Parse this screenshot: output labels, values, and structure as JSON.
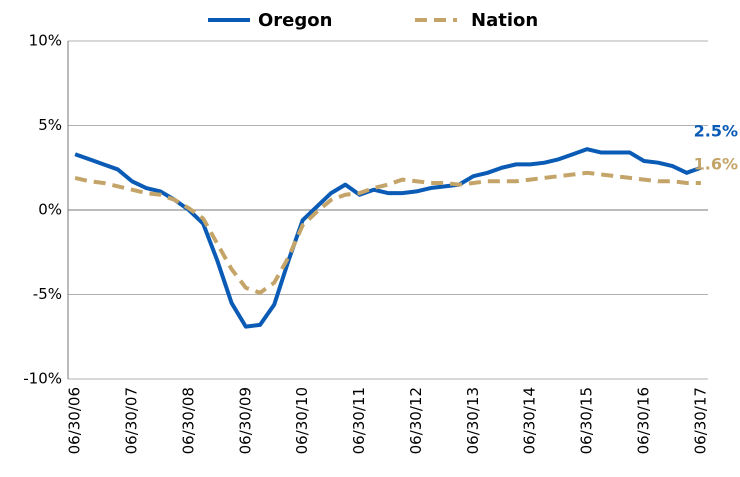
{
  "chart_data": {
    "type": "line",
    "categories": [
      "06/30/06",
      null,
      null,
      null,
      "06/30/07",
      null,
      null,
      null,
      "06/30/08",
      null,
      null,
      null,
      "06/30/09",
      null,
      null,
      null,
      "06/30/10",
      null,
      null,
      null,
      "06/30/11",
      null,
      null,
      null,
      "06/30/12",
      null,
      null,
      null,
      "06/30/13",
      null,
      null,
      null,
      "06/30/14",
      null,
      null,
      null,
      "06/30/15",
      null,
      null,
      null,
      "06/30/16",
      null,
      null,
      null,
      "06/30/17"
    ],
    "series": [
      {
        "name": "Oregon",
        "color": "#0a5bb5",
        "dashed": false,
        "values": [
          3.3,
          3.0,
          2.7,
          2.4,
          1.7,
          1.3,
          1.1,
          0.6,
          0.0,
          -0.8,
          -3.0,
          -5.5,
          -6.9,
          -6.8,
          -5.6,
          -3.0,
          -0.6,
          0.2,
          1.0,
          1.5,
          0.9,
          1.2,
          1.0,
          1.0,
          1.1,
          1.3,
          1.4,
          1.5,
          2.0,
          2.2,
          2.5,
          2.7,
          2.7,
          2.8,
          3.0,
          3.3,
          3.6,
          3.4,
          3.4,
          3.4,
          2.9,
          2.8,
          2.6,
          2.2,
          2.5
        ],
        "value_labels": [
          null,
          null,
          null,
          null,
          null,
          null,
          null,
          null,
          null,
          null,
          null,
          null,
          null,
          null,
          null,
          null,
          null,
          null,
          null,
          null,
          null,
          null,
          null,
          null,
          null,
          null,
          null,
          null,
          null,
          null,
          null,
          null,
          null,
          null,
          null,
          null,
          null,
          null,
          null,
          null,
          null,
          null,
          null,
          null,
          "2.5%"
        ]
      },
      {
        "name": "Nation",
        "color": "#c4a468",
        "dashed": true,
        "values": [
          1.9,
          1.7,
          1.6,
          1.4,
          1.2,
          1.0,
          0.9,
          0.6,
          0.1,
          -0.5,
          -2.0,
          -3.5,
          -4.6,
          -4.9,
          -4.3,
          -2.8,
          -0.9,
          -0.1,
          0.6,
          0.9,
          1.0,
          1.3,
          1.5,
          1.8,
          1.7,
          1.6,
          1.6,
          1.5,
          1.6,
          1.7,
          1.7,
          1.7,
          1.8,
          1.9,
          2.0,
          2.1,
          2.2,
          2.1,
          2.0,
          1.9,
          1.8,
          1.7,
          1.7,
          1.6,
          1.6
        ],
        "value_labels": [
          null,
          null,
          null,
          null,
          null,
          null,
          null,
          null,
          null,
          null,
          null,
          null,
          null,
          null,
          null,
          null,
          null,
          null,
          null,
          null,
          null,
          null,
          null,
          null,
          null,
          null,
          null,
          null,
          null,
          null,
          null,
          null,
          null,
          null,
          null,
          null,
          null,
          null,
          null,
          null,
          null,
          null,
          null,
          null,
          "1.6%"
        ]
      }
    ],
    "ylim": [
      -10,
      10
    ],
    "yticks": [
      {
        "value": -10,
        "label": "-10%"
      },
      {
        "value": -5,
        "label": "-5%"
      },
      {
        "value": 0,
        "label": "0%"
      },
      {
        "value": 5,
        "label": "5%"
      },
      {
        "value": 10,
        "label": "10%"
      }
    ],
    "grid": true,
    "legend": "top"
  }
}
